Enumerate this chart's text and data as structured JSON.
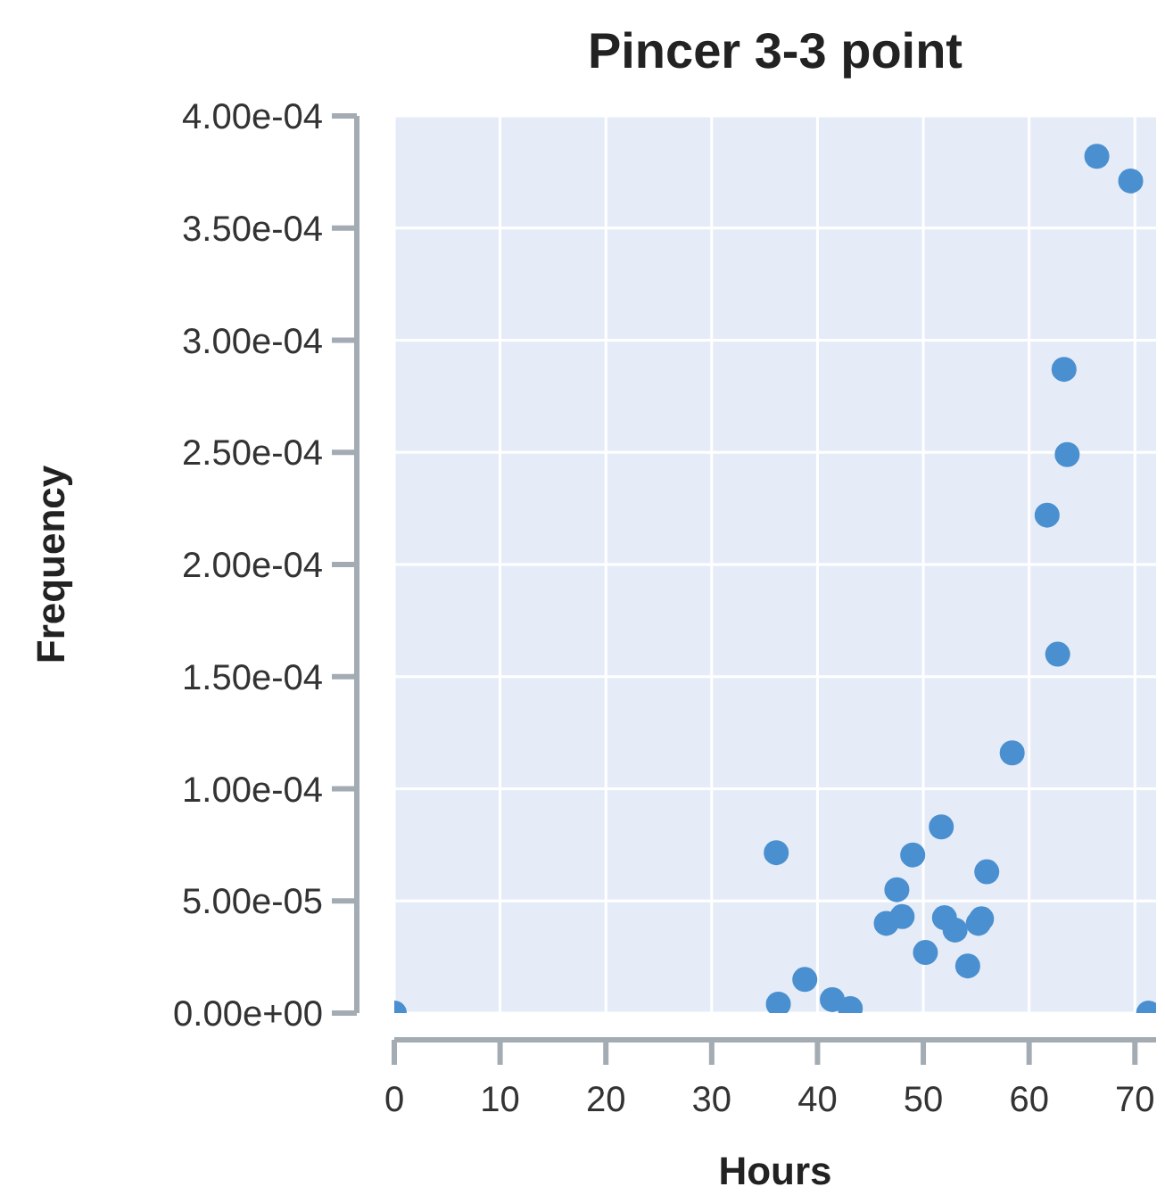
{
  "chart_data": {
    "type": "scatter",
    "title": "Pincer 3-3 point",
    "xlabel": "Hours",
    "ylabel": "Frequency",
    "series": [
      {
        "color": "#4a90d0",
        "x": [
          0,
          36.1,
          36.3,
          38.8,
          41.4,
          43.1,
          46.5,
          48.0,
          47.5,
          49.0,
          51.7,
          50.2,
          52.0,
          53.0,
          54.2,
          55.2,
          55.5,
          56.0,
          58.4,
          66.4,
          69.6,
          63.3,
          63.6,
          61.7,
          62.7,
          71.3
        ],
        "values": [
          0,
          7.15e-05,
          4e-06,
          1.5e-05,
          6e-06,
          2e-06,
          4e-05,
          4.3e-05,
          5.5e-05,
          7.05e-05,
          8.3e-05,
          2.7e-05,
          4.25e-05,
          3.7e-05,
          2.1e-05,
          4e-05,
          4.2e-05,
          6.3e-05,
          0.000116,
          0.000382,
          0.000371,
          0.000287,
          0.000249,
          0.000222,
          0.00016,
          0
        ]
      }
    ],
    "xlim": [
      0,
      72
    ],
    "xticks": [
      0,
      10,
      20,
      30,
      40,
      50,
      60,
      70
    ],
    "ylim": [
      0,
      0.0004
    ],
    "yticks": [
      {
        "value": 0,
        "label": "0.00e+00"
      },
      {
        "value": 5e-05,
        "label": "5.00e-05"
      },
      {
        "value": 0.0001,
        "label": "1.00e-04"
      },
      {
        "value": 0.00015,
        "label": "1.50e-04"
      },
      {
        "value": 0.0002,
        "label": "2.00e-04"
      },
      {
        "value": 0.00025,
        "label": "2.50e-04"
      },
      {
        "value": 0.0003,
        "label": "3.00e-04"
      },
      {
        "value": 0.00035,
        "label": "3.50e-04"
      },
      {
        "value": 0.0004,
        "label": "4.00e-04"
      }
    ],
    "grid": true,
    "marker": "circle"
  }
}
